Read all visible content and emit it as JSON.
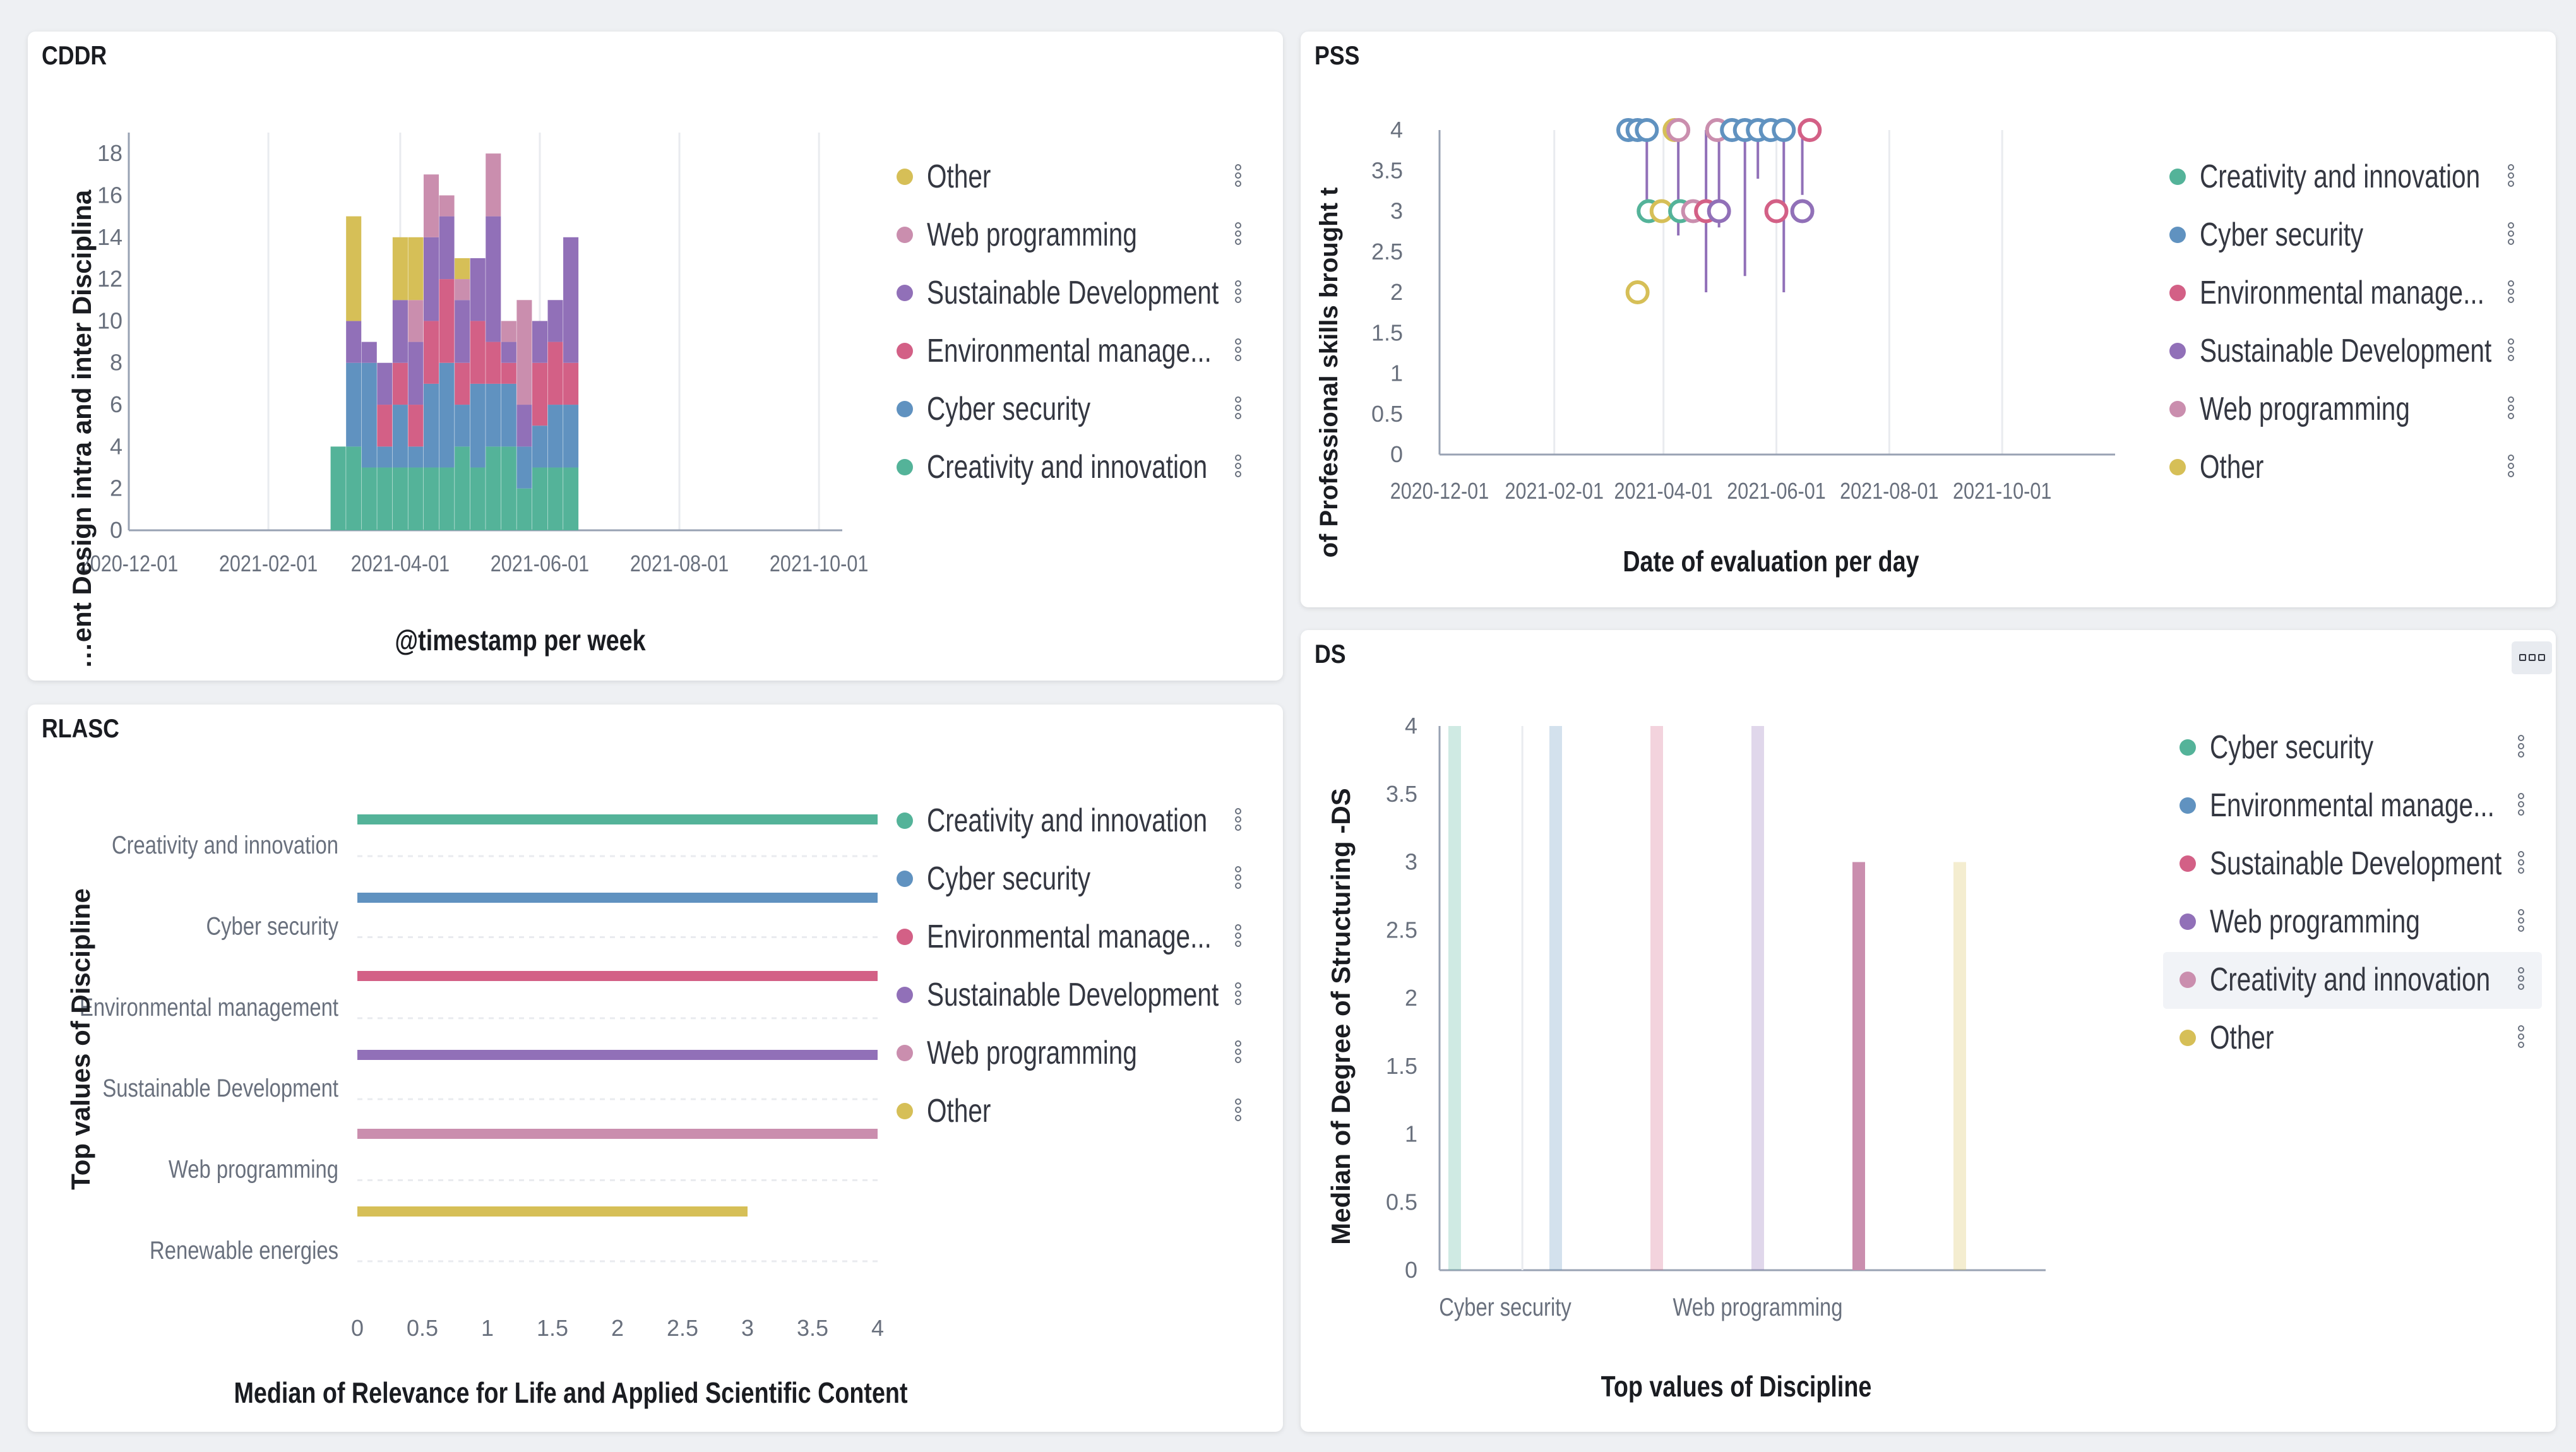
{
  "colors": {
    "green": "#54b399",
    "blue": "#6092c0",
    "red": "#d36086",
    "purple": "#9170b8",
    "pink": "#ca8eae",
    "yellow": "#d6bf57",
    "grid": "#e9ebef",
    "axis": "#98a2b3"
  },
  "panels": {
    "cddr": {
      "title": "CDDR",
      "chart_data": {
        "type": "bar",
        "stacked": true,
        "title": "CDDR",
        "xlabel": "@timestamp per week",
        "ylabel": "…ent Design intra and inter Disciplina",
        "x_ticks": [
          "2020-12-01",
          "2021-02-01",
          "2021-04-01",
          "2021-06-01",
          "2021-08-01",
          "2021-10-01"
        ],
        "y_ticks": [
          "0",
          "2",
          "4",
          "6",
          "8",
          "10",
          "12",
          "14",
          "16",
          "18"
        ],
        "ylim": [
          0,
          19
        ],
        "x_index_range": [
          0,
          46
        ],
        "x_tick_index": [
          0,
          9,
          17.5,
          26.5,
          35.5,
          44.5
        ],
        "bar_index": [
          13.5,
          14.5,
          15.5,
          16.5,
          17.5,
          18.5,
          19.5,
          20.5,
          21.5,
          22.5,
          23.5,
          24.5,
          25.5,
          26.5,
          27.5,
          28.5
        ],
        "series": [
          {
            "name": "Creativity and innovation",
            "color": "#54b399",
            "values": [
              4,
              4,
              3,
              3,
              3,
              3,
              3,
              3,
              4,
              3,
              4,
              4,
              2,
              3,
              3,
              3
            ]
          },
          {
            "name": "Cyber security",
            "color": "#6092c0",
            "values": [
              0,
              4,
              5,
              1,
              3,
              1,
              4,
              5,
              2,
              4,
              3,
              3,
              2,
              2,
              3,
              3
            ]
          },
          {
            "name": "Environmental management",
            "color": "#d36086",
            "values": [
              0,
              0,
              0,
              2,
              2,
              2,
              3,
              4,
              2,
              3,
              2,
              1,
              0,
              3,
              3,
              2
            ]
          },
          {
            "name": "Sustainable Development",
            "color": "#9170b8",
            "values": [
              0,
              2,
              1,
              2,
              3,
              3,
              4,
              3,
              3,
              3,
              6,
              1,
              2,
              2,
              2,
              6
            ]
          },
          {
            "name": "Web programming",
            "color": "#ca8eae",
            "values": [
              0,
              0,
              0,
              0,
              0,
              2,
              3,
              1,
              1,
              0,
              3,
              1,
              5,
              0,
              0,
              0
            ]
          },
          {
            "name": "Other",
            "color": "#d6bf57",
            "values": [
              0,
              5,
              0,
              0,
              3,
              3,
              0,
              0,
              1,
              0,
              0,
              0,
              0,
              0,
              0,
              0
            ]
          }
        ]
      },
      "legend": [
        {
          "label": "Other",
          "color": "#d6bf57"
        },
        {
          "label": "Web programming",
          "color": "#ca8eae"
        },
        {
          "label": "Sustainable Development",
          "color": "#9170b8"
        },
        {
          "label": "Environmental manage...",
          "color": "#d36086"
        },
        {
          "label": "Cyber security",
          "color": "#6092c0"
        },
        {
          "label": "Creativity and innovation",
          "color": "#54b399"
        }
      ]
    },
    "pss": {
      "title": "PSS",
      "chart_data": {
        "type": "scatter",
        "title": "PSS",
        "xlabel": "Date of evaluation per day",
        "ylabel": "of Professional skills brought t",
        "x_ticks": [
          "2020-12-01",
          "2021-02-01",
          "2021-04-01",
          "2021-06-01",
          "2021-08-01",
          "2021-10-01"
        ],
        "y_ticks": [
          "0",
          "0.5",
          "1",
          "1.5",
          "2",
          "2.5",
          "3",
          "3.5",
          "4"
        ],
        "ylim": [
          0,
          4
        ],
        "x_index_range": [
          0,
          365
        ],
        "x_tick_index": [
          0,
          62,
          121,
          182,
          243,
          304
        ],
        "points": [
          {
            "x": 102,
            "y": 4,
            "color": "#6092c0"
          },
          {
            "x": 107,
            "y": 4,
            "color": "#6092c0"
          },
          {
            "x": 112,
            "y": 4,
            "color": "#6092c0"
          },
          {
            "x": 127,
            "y": 4,
            "color": "#d6bf57"
          },
          {
            "x": 129,
            "y": 4,
            "color": "#ca8eae"
          },
          {
            "x": 150,
            "y": 4,
            "color": "#ca8eae"
          },
          {
            "x": 158,
            "y": 4,
            "color": "#6092c0"
          },
          {
            "x": 165,
            "y": 4,
            "color": "#6092c0"
          },
          {
            "x": 172,
            "y": 4,
            "color": "#6092c0"
          },
          {
            "x": 179,
            "y": 4,
            "color": "#6092c0"
          },
          {
            "x": 186,
            "y": 4,
            "color": "#6092c0"
          },
          {
            "x": 200,
            "y": 4,
            "color": "#d36086"
          },
          {
            "x": 113,
            "y": 3,
            "color": "#54b399"
          },
          {
            "x": 120,
            "y": 3,
            "color": "#d6bf57"
          },
          {
            "x": 130,
            "y": 3,
            "color": "#54b399"
          },
          {
            "x": 137,
            "y": 3,
            "color": "#ca8eae"
          },
          {
            "x": 144,
            "y": 3,
            "color": "#d36086"
          },
          {
            "x": 151,
            "y": 3,
            "color": "#9170b8"
          },
          {
            "x": 182,
            "y": 3,
            "color": "#d36086"
          },
          {
            "x": 196,
            "y": 3,
            "color": "#9170b8"
          },
          {
            "x": 107,
            "y": 2,
            "color": "#d6bf57"
          }
        ]
      },
      "legend": [
        {
          "label": "Creativity and innovation",
          "color": "#54b399"
        },
        {
          "label": "Cyber security",
          "color": "#6092c0"
        },
        {
          "label": "Environmental manage...",
          "color": "#d36086"
        },
        {
          "label": "Sustainable Development",
          "color": "#9170b8"
        },
        {
          "label": "Web programming",
          "color": "#ca8eae"
        },
        {
          "label": "Other",
          "color": "#d6bf57"
        }
      ]
    },
    "rlasc": {
      "title": "RLASC",
      "chart_data": {
        "type": "bar",
        "orientation": "horizontal",
        "title": "RLASC",
        "xlabel": "Median of Relevance for Life and Applied Scientific Content",
        "ylabel": "Top values of Discipline",
        "categories": [
          "Creativity and innovation",
          "Cyber security",
          "Environmental management",
          "Sustainable Development",
          "Web programming",
          "Renewable energies"
        ],
        "x_ticks": [
          "0",
          "0.5",
          "1",
          "1.5",
          "2",
          "2.5",
          "3",
          "3.5",
          "4"
        ],
        "xlim": [
          0,
          4
        ],
        "series": [
          {
            "name": "Creativity and innovation",
            "color": "#54b399",
            "values": [
              4,
              0,
              0,
              0,
              0,
              0
            ]
          },
          {
            "name": "Cyber security",
            "color": "#6092c0",
            "values": [
              0,
              4,
              0,
              0,
              0,
              0
            ]
          },
          {
            "name": "Environmental management",
            "color": "#d36086",
            "values": [
              0,
              0,
              4,
              0,
              0,
              0
            ]
          },
          {
            "name": "Sustainable Development",
            "color": "#9170b8",
            "values": [
              0,
              0,
              0,
              4,
              0,
              0
            ]
          },
          {
            "name": "Web programming",
            "color": "#ca8eae",
            "values": [
              0,
              0,
              0,
              0,
              4,
              0
            ]
          },
          {
            "name": "Other",
            "color": "#d6bf57",
            "values": [
              0,
              0,
              0,
              0,
              0,
              3
            ]
          }
        ]
      },
      "legend": [
        {
          "label": "Creativity and innovation",
          "color": "#54b399"
        },
        {
          "label": "Cyber security",
          "color": "#6092c0"
        },
        {
          "label": "Environmental manage...",
          "color": "#d36086"
        },
        {
          "label": "Sustainable Development",
          "color": "#9170b8"
        },
        {
          "label": "Web programming",
          "color": "#ca8eae"
        },
        {
          "label": "Other",
          "color": "#d6bf57"
        }
      ]
    },
    "ds": {
      "title": "DS",
      "chart_data": {
        "type": "bar",
        "title": "DS",
        "xlabel": "Top values of Discipline",
        "ylabel": "Median of Degree of Structuring -DS",
        "x_tick_labels": [
          {
            "label": "Cyber security",
            "at": 0.5
          },
          {
            "label": "Web programming",
            "at": 3
          }
        ],
        "y_ticks": [
          "0",
          "0.5",
          "1",
          "1.5",
          "2",
          "2.5",
          "3",
          "3.5",
          "4"
        ],
        "ylim": [
          0,
          4
        ],
        "x_index_range": [
          -0.5,
          5.5
        ],
        "bars": [
          {
            "x": 0,
            "value": 4,
            "color": "#54b399",
            "highlighted": false
          },
          {
            "x": 1,
            "value": 4,
            "color": "#6092c0",
            "highlighted": false
          },
          {
            "x": 2,
            "value": 4,
            "color": "#d36086",
            "highlighted": false
          },
          {
            "x": 3,
            "value": 4,
            "color": "#9170b8",
            "highlighted": false
          },
          {
            "x": 4,
            "value": 3,
            "color": "#ca8eae",
            "highlighted": true
          },
          {
            "x": 5,
            "value": 3,
            "color": "#d6bf57",
            "highlighted": false
          }
        ]
      },
      "legend": [
        {
          "label": "Cyber security",
          "color": "#54b399"
        },
        {
          "label": "Environmental manage...",
          "color": "#6092c0"
        },
        {
          "label": "Sustainable Development",
          "color": "#d36086"
        },
        {
          "label": "Web programming",
          "color": "#9170b8"
        },
        {
          "label": "Creativity and innovation",
          "color": "#ca8eae",
          "highlighted": true
        },
        {
          "label": "Other",
          "color": "#d6bf57"
        }
      ]
    }
  }
}
